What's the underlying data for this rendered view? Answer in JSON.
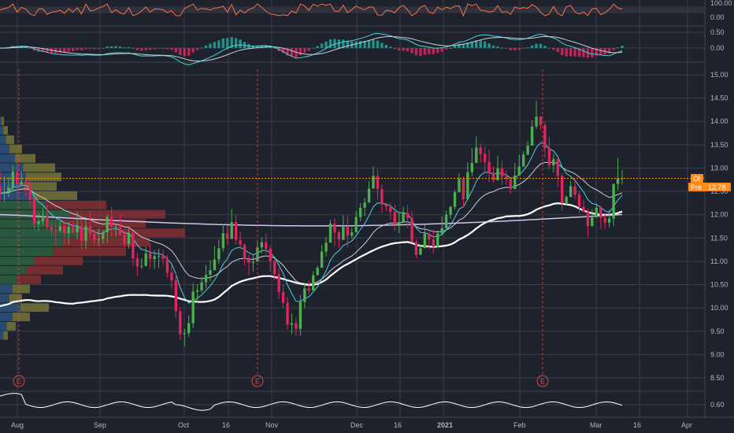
{
  "chart_data": {
    "type": "candlestick",
    "panes": {
      "rsi": {
        "ylim": [
          0,
          100
        ],
        "ticks": [
          "100.00",
          "0.00"
        ],
        "tick_values": [
          100,
          0
        ]
      },
      "macd": {
        "ylim": [
          -0.1,
          0.6
        ],
        "ticks": [
          "0.50",
          "0.00"
        ],
        "tick_values": [
          0.5,
          0
        ]
      },
      "price": {
        "ylim": [
          8.35,
          15.15
        ],
        "ticks": [
          "15.00",
          "14.50",
          "14.00",
          "13.50",
          "13.00",
          "12.50",
          "12.00",
          "11.50",
          "11.00",
          "10.50",
          "10.00",
          "9.50",
          "9.00",
          "8.50"
        ],
        "tick_values": [
          15,
          14.5,
          14,
          13.5,
          13,
          12.5,
          12,
          11.5,
          11,
          10.5,
          10,
          9.5,
          9,
          8.5
        ]
      },
      "lower": {
        "ticks": [
          "0.60"
        ],
        "tick_values": [
          0.6
        ]
      }
    },
    "x_axis_labels": [
      "Aug",
      "Sep",
      "Oct",
      "16",
      "Nov",
      "Dec",
      "16",
      "2021",
      "Feb",
      "Mar",
      "16",
      "Apr"
    ],
    "earnings_marker": "E",
    "last_price": 12.78,
    "tags": {
      "open_label": "Ol",
      "pre_label": "Pre",
      "price_label": "12.78"
    },
    "candles": [
      [
        12.61,
        12.46,
        12.93,
        12.29
      ],
      [
        12.46,
        12.5,
        12.82,
        12.28
      ],
      [
        12.5,
        12.58,
        12.81,
        12.37
      ],
      [
        12.58,
        12.92,
        13.06,
        12.5
      ],
      [
        12.92,
        12.65,
        13.17,
        12.35
      ],
      [
        12.65,
        12.71,
        12.93,
        12.61
      ],
      [
        12.71,
        12.66,
        12.8,
        12.39
      ],
      [
        12.66,
        12.32,
        12.73,
        12.2
      ],
      [
        12.32,
        11.8,
        12.39,
        11.66
      ],
      [
        11.8,
        11.86,
        12.04,
        11.65
      ],
      [
        11.86,
        11.96,
        12.14,
        11.77
      ],
      [
        11.96,
        11.73,
        12.2,
        11.65
      ],
      [
        11.73,
        11.67,
        11.84,
        11.55
      ],
      [
        11.67,
        11.66,
        11.81,
        11.35
      ],
      [
        11.66,
        11.75,
        11.86,
        11.61
      ],
      [
        11.75,
        11.6,
        11.81,
        11.36
      ],
      [
        11.6,
        11.74,
        11.84,
        11.36
      ],
      [
        11.74,
        11.62,
        11.86,
        11.58
      ],
      [
        11.62,
        11.76,
        12.06,
        11.48
      ],
      [
        11.76,
        11.44,
        11.9,
        11.24
      ],
      [
        11.44,
        11.75,
        11.89,
        11.27
      ],
      [
        11.75,
        11.59,
        12.06,
        11.47
      ],
      [
        11.59,
        11.46,
        11.7,
        11.35
      ],
      [
        11.46,
        11.48,
        11.7,
        11.33
      ],
      [
        11.48,
        11.62,
        11.67,
        11.38
      ],
      [
        11.62,
        11.95,
        12.01,
        11.4
      ],
      [
        11.95,
        11.73,
        12.17,
        11.51
      ],
      [
        11.73,
        11.74,
        11.8,
        11.53
      ],
      [
        11.74,
        11.57,
        12.01,
        11.55
      ],
      [
        11.57,
        11.37,
        11.69,
        11.3
      ],
      [
        11.37,
        11.61,
        11.76,
        11.27
      ],
      [
        11.61,
        11.06,
        11.64,
        10.9
      ],
      [
        11.06,
        10.89,
        11.18,
        10.69
      ],
      [
        10.89,
        10.9,
        11.07,
        10.84
      ],
      [
        10.9,
        11.17,
        11.3,
        10.89
      ],
      [
        11.17,
        11.05,
        11.39,
        10.85
      ],
      [
        11.05,
        11.11,
        11.24,
        10.84
      ],
      [
        11.11,
        11.12,
        11.27,
        10.86
      ],
      [
        11.12,
        11.05,
        11.25,
        10.92
      ],
      [
        11.05,
        10.76,
        11.13,
        10.65
      ],
      [
        10.76,
        10.59,
        10.92,
        10.42
      ],
      [
        10.59,
        9.93,
        10.77,
        9.79
      ],
      [
        9.93,
        9.44,
        10.01,
        9.31
      ],
      [
        9.44,
        9.46,
        9.55,
        9.18
      ],
      [
        9.46,
        9.67,
        9.84,
        9.38
      ],
      [
        9.67,
        10.35,
        10.52,
        9.57
      ],
      [
        10.35,
        10.38,
        10.51,
        10.13
      ],
      [
        10.38,
        10.55,
        10.67,
        10.33
      ],
      [
        10.55,
        10.71,
        10.92,
        10.42
      ],
      [
        10.71,
        10.81,
        11.02,
        10.57
      ],
      [
        10.81,
        11.04,
        11.33,
        10.92
      ],
      [
        11.04,
        11.28,
        11.46,
        10.95
      ],
      [
        11.28,
        11.6,
        11.8,
        11.21
      ],
      [
        11.6,
        11.48,
        11.76,
        11.35
      ],
      [
        11.48,
        11.84,
        12.12,
        11.6
      ],
      [
        11.84,
        11.46,
        11.99,
        11.36
      ],
      [
        11.46,
        11.36,
        11.63,
        11.26
      ],
      [
        11.36,
        11.05,
        11.38,
        10.91
      ],
      [
        11.05,
        10.97,
        11.14,
        10.71
      ],
      [
        10.97,
        10.99,
        11.13,
        10.78
      ],
      [
        10.99,
        11.3,
        11.43,
        11.1
      ],
      [
        11.3,
        11.41,
        11.51,
        11.17
      ],
      [
        11.41,
        11.27,
        11.59,
        11.16
      ],
      [
        11.27,
        11.0,
        11.34,
        10.78
      ],
      [
        11.0,
        10.72,
        11.04,
        10.6
      ],
      [
        10.72,
        10.34,
        10.86,
        10.19
      ],
      [
        10.34,
        10.11,
        10.49,
        9.99
      ],
      [
        10.11,
        9.64,
        10.24,
        9.53
      ],
      [
        9.64,
        9.67,
        9.88,
        9.44
      ],
      [
        9.67,
        9.55,
        9.79,
        9.4
      ],
      [
        9.55,
        10.13,
        10.28,
        9.4
      ],
      [
        10.13,
        10.42,
        10.54,
        10.0
      ],
      [
        10.42,
        10.37,
        10.59,
        10.3
      ],
      [
        10.37,
        10.7,
        10.79,
        10.58
      ],
      [
        10.7,
        10.86,
        10.91,
        10.72
      ],
      [
        10.86,
        11.21,
        11.35,
        11.07
      ],
      [
        11.21,
        11.4,
        11.52,
        11.1
      ],
      [
        11.4,
        11.81,
        11.89,
        11.55
      ],
      [
        11.81,
        11.62,
        11.92,
        11.33
      ],
      [
        11.62,
        11.46,
        11.66,
        11.29
      ],
      [
        11.46,
        11.74,
        11.99,
        11.52
      ],
      [
        11.74,
        11.55,
        11.98,
        11.3
      ],
      [
        11.55,
        11.62,
        11.72,
        11.49
      ],
      [
        11.62,
        11.95,
        12.08,
        11.67
      ],
      [
        11.95,
        12.15,
        12.25,
        11.85
      ],
      [
        12.15,
        12.26,
        12.36,
        11.97
      ],
      [
        12.26,
        12.56,
        12.72,
        12.37
      ],
      [
        12.56,
        12.83,
        13.04,
        12.6
      ],
      [
        12.83,
        12.55,
        12.97,
        12.31
      ],
      [
        12.55,
        12.22,
        12.65,
        12.04
      ],
      [
        12.22,
        12.17,
        12.26,
        12.07
      ],
      [
        12.17,
        12.06,
        12.26,
        11.89
      ],
      [
        12.06,
        11.79,
        12.22,
        11.65
      ],
      [
        11.79,
        11.84,
        12.05,
        11.61
      ],
      [
        11.84,
        12.04,
        12.17,
        11.86
      ],
      [
        12.04,
        11.93,
        12.2,
        11.71
      ],
      [
        11.93,
        11.41,
        12.08,
        11.4
      ],
      [
        11.41,
        11.14,
        11.47,
        11.06
      ],
      [
        11.14,
        11.28,
        11.37,
        11.17
      ],
      [
        11.28,
        11.59,
        11.79,
        11.46
      ],
      [
        11.59,
        11.47,
        11.65,
        11.26
      ],
      [
        11.47,
        11.31,
        11.68,
        11.17
      ],
      [
        11.31,
        11.6,
        11.67,
        11.38
      ],
      [
        11.6,
        11.71,
        11.96,
        11.55
      ],
      [
        11.71,
        12.0,
        12.09,
        11.86
      ],
      [
        12.0,
        12.17,
        12.19,
        11.91
      ],
      [
        12.17,
        12.48,
        12.53,
        12.11
      ],
      [
        12.48,
        12.77,
        12.89,
        12.57
      ],
      [
        12.77,
        12.33,
        12.83,
        12.16
      ],
      [
        12.33,
        12.91,
        13.12,
        12.7
      ],
      [
        12.91,
        13.11,
        13.43,
        12.82
      ],
      [
        13.11,
        13.44,
        13.68,
        13.13
      ],
      [
        13.44,
        13.3,
        13.52,
        13.11
      ],
      [
        13.3,
        13.13,
        13.46,
        12.89
      ],
      [
        13.13,
        12.9,
        13.4,
        12.7
      ],
      [
        12.9,
        12.74,
        13.04,
        12.69
      ],
      [
        12.74,
        12.99,
        13.26,
        12.89
      ],
      [
        12.99,
        12.82,
        13.16,
        12.63
      ],
      [
        12.82,
        12.76,
        12.95,
        12.64
      ],
      [
        12.76,
        12.55,
        12.8,
        12.45
      ],
      [
        12.55,
        12.84,
        13.11,
        12.63
      ],
      [
        12.84,
        13.03,
        13.28,
        12.91
      ],
      [
        13.03,
        13.29,
        13.36,
        13.07
      ],
      [
        13.29,
        13.48,
        13.58,
        13.27
      ],
      [
        13.48,
        13.89,
        14.03,
        13.76
      ],
      [
        13.89,
        14.1,
        14.44,
        13.84
      ],
      [
        14.1,
        13.92,
        14.13,
        13.82
      ],
      [
        13.92,
        13.42,
        13.99,
        13.22
      ],
      [
        13.42,
        13.06,
        13.68,
        12.97
      ],
      [
        13.06,
        13.19,
        13.3,
        12.91
      ],
      [
        13.19,
        12.83,
        13.22,
        12.6
      ],
      [
        12.83,
        12.25,
        12.88,
        12.08
      ],
      [
        12.25,
        12.38,
        12.42,
        12.2
      ],
      [
        12.38,
        12.61,
        12.73,
        12.45
      ],
      [
        12.61,
        12.43,
        12.78,
        12.34
      ],
      [
        12.43,
        12.17,
        12.51,
        12.03
      ],
      [
        12.17,
        12.06,
        12.32,
        12.05
      ],
      [
        12.06,
        11.76,
        12.13,
        11.52
      ],
      [
        11.76,
        11.94,
        12.12,
        11.74
      ],
      [
        11.94,
        12.15,
        12.24,
        12.02
      ],
      [
        12.15,
        11.93,
        12.19,
        11.7
      ],
      [
        11.93,
        11.83,
        12.04,
        11.7
      ],
      [
        11.83,
        11.92,
        12.1,
        11.73
      ],
      [
        11.92,
        12.66,
        12.66,
        11.76
      ],
      [
        12.66,
        12.78,
        13.22,
        12.52
      ],
      [
        12.78,
        12.78,
        12.96,
        12.65
      ]
    ]
  },
  "colors": {
    "background": "#1e222d",
    "up": "#26a69a",
    "down": "#ef5350",
    "up_candle": "#4caf50",
    "down_candle": "#e0245e",
    "grid": "#5d606b",
    "sma_long": "#ffffff",
    "sma_200": "#d1c4e9",
    "ema_fast": "#4dd0e1",
    "ema_slow": "#c9cfd9",
    "dotted_line": "#ff9800",
    "rsi_line": "#ff7043",
    "tag_bg": "#ff8c1a",
    "earnings": "#e04a4a"
  }
}
